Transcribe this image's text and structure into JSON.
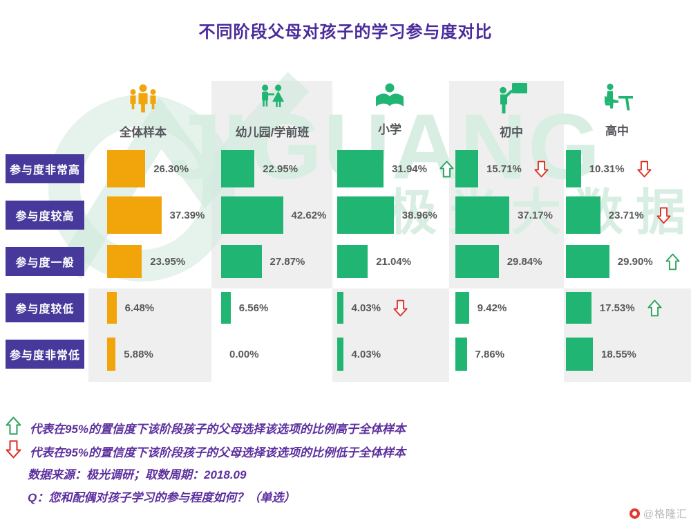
{
  "title": "不同阶段父母对孩子的学习参与度对比",
  "watermark": {
    "brand": "JIGUANG",
    "brand_cn": "极光大数据"
  },
  "chart_data": {
    "type": "bar",
    "orientation": "horizontal",
    "value_format": "percent, 2 decimals",
    "rows": [
      "参与度非常高",
      "参与度较高",
      "参与度一般",
      "参与度较低",
      "参与度非常低"
    ],
    "columns": [
      {
        "label": "全体样本",
        "icon": "people-group-icon",
        "color": "#F1A50B",
        "values": [
          26.3,
          37.39,
          23.95,
          6.48,
          5.88
        ],
        "flags": [
          null,
          null,
          null,
          null,
          null
        ]
      },
      {
        "label": "幼儿园/学前班",
        "icon": "children-icon",
        "color": "#21B573",
        "values": [
          22.95,
          42.62,
          27.87,
          6.56,
          0.0
        ],
        "flags": [
          null,
          null,
          null,
          null,
          null
        ]
      },
      {
        "label": "小学",
        "icon": "reading-icon",
        "color": "#21B573",
        "values": [
          31.94,
          38.96,
          21.04,
          4.03,
          4.03
        ],
        "flags": [
          "up",
          null,
          null,
          "down",
          null
        ]
      },
      {
        "label": "初中",
        "icon": "teacher-icon",
        "color": "#21B573",
        "values": [
          15.71,
          37.17,
          29.84,
          9.42,
          7.86
        ],
        "flags": [
          "down",
          null,
          null,
          null,
          null
        ]
      },
      {
        "label": "高中",
        "icon": "desk-study-icon",
        "color": "#21B573",
        "values": [
          10.31,
          23.71,
          29.9,
          17.53,
          18.55
        ],
        "flags": [
          "down",
          "down",
          "up",
          "up",
          null
        ]
      }
    ],
    "significance": {
      "up_color": "#2aa45f",
      "down_color": "#dd2f26"
    },
    "row_label_bg": "#46399b",
    "title_color": "#4b2b9b"
  },
  "legend": [
    {
      "icon": "up-arrow-icon",
      "text": "代表在95%的置信度下该阶段孩子的父母选择该选项的比例高于全体样本"
    },
    {
      "icon": "down-arrow-icon",
      "text": "代表在95%的置信度下该阶段孩子的父母选择该选项的比例低于全体样本"
    }
  ],
  "source_line": "数据来源：极光调研；取数周期：2018.09",
  "question_line": "Q：您和配偶对孩子学习的参与程度如何？（单选）",
  "footer": {
    "credit": "@格隆汇"
  }
}
